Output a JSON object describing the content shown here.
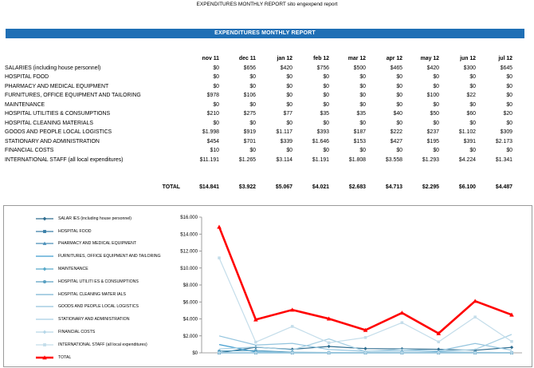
{
  "page_title": "EXPENDITURES MONTHLY REPORT sito engexpend report",
  "banner": "EXPENDITURES MONTHLY REPORT",
  "table": {
    "columns": [
      "nov 11",
      "dec 11",
      "jan 12",
      "feb 12",
      "mar 12",
      "apr 12",
      "may 12",
      "jun 12",
      "jul 12"
    ],
    "rows": [
      {
        "label": "SALARIES (including house personnel)",
        "values": [
          "$0",
          "$656",
          "$420",
          "$756",
          "$500",
          "$465",
          "$420",
          "$300",
          "$645"
        ]
      },
      {
        "label": "HOSPITAL  FOOD",
        "values": [
          "$0",
          "$0",
          "$0",
          "$0",
          "$0",
          "$0",
          "$0",
          "$0",
          "$0"
        ]
      },
      {
        "label": "PHARMACY AND MEDICAL EQUIPMENT",
        "values": [
          "$0",
          "$0",
          "$0",
          "$0",
          "$0",
          "$0",
          "$0",
          "$0",
          "$0"
        ]
      },
      {
        "label": "FURNITURES, OFFICE EQUIPMENT AND TAILORING",
        "values": [
          "$978",
          "$106",
          "$0",
          "$0",
          "$0",
          "$0",
          "$100",
          "$22",
          "$0"
        ]
      },
      {
        "label": "MAINTENANCE",
        "values": [
          "$0",
          "$0",
          "$0",
          "$0",
          "$0",
          "$0",
          "$0",
          "$0",
          "$0"
        ]
      },
      {
        "label": "HOSPITAL UTILITIES & CONSUMPTIONS",
        "values": [
          "$210",
          "$275",
          "$77",
          "$35",
          "$35",
          "$40",
          "$50",
          "$60",
          "$20"
        ]
      },
      {
        "label": "HOSPITAL CLEANING MATERIALS",
        "values": [
          "$0",
          "$0",
          "$0",
          "$0",
          "$0",
          "$0",
          "$0",
          "$0",
          "$0"
        ]
      },
      {
        "label": "GOODS AND PEOPLE LOCAL LOGISTICS",
        "values": [
          "$1.998",
          "$919",
          "$1.117",
          "$393",
          "$187",
          "$222",
          "$237",
          "$1.102",
          "$309"
        ]
      },
      {
        "label": "STATIONARY AND ADMINISTRATION",
        "values": [
          "$454",
          "$701",
          "$339",
          "$1.646",
          "$153",
          "$427",
          "$195",
          "$391",
          "$2.173"
        ]
      },
      {
        "label": "FINANCIAL COSTS",
        "values": [
          "$10",
          "$0",
          "$0",
          "$0",
          "$0",
          "$0",
          "$0",
          "$0",
          "$0"
        ]
      },
      {
        "label": "INTERNATIONAL STAFF (all local expenditures)",
        "values": [
          "$11.191",
          "$1.265",
          "$3.114",
          "$1.191",
          "$1.808",
          "$3.558",
          "$1.293",
          "$4.224",
          "$1.341"
        ]
      }
    ],
    "total": {
      "label": "TOTAL",
      "values": [
        "$14.841",
        "$3.922",
        "$5.067",
        "$4.021",
        "$2.683",
        "$4.713",
        "$2.295",
        "$6.100",
        "$4.487"
      ]
    }
  },
  "chart_data": {
    "type": "line",
    "x": [
      "nov 11",
      "dec 11",
      "jan 12",
      "feb 12",
      "mar 12",
      "apr 12",
      "may 12",
      "jun 12",
      "jul 12"
    ],
    "ylim": [
      0,
      16000
    ],
    "yticks": [
      "$0",
      "$2.000",
      "$4.000",
      "$6.000",
      "$8.000",
      "$10.000",
      "$12.000",
      "$14.000",
      "$16.000"
    ],
    "legend_position": "left",
    "grid": false,
    "series": [
      {
        "name": "SALAR IES (including house personnel)",
        "values": [
          0,
          656,
          420,
          756,
          500,
          465,
          420,
          300,
          645
        ],
        "color": "#2e6c8f",
        "marker": "diamond"
      },
      {
        "name": "HOSPITAL  FOOD",
        "values": [
          0,
          0,
          0,
          0,
          0,
          0,
          0,
          0,
          0
        ],
        "color": "#3a7fa8",
        "marker": "square"
      },
      {
        "name": "PHARMACY AND MEDICAL EQUIPMENT",
        "values": [
          0,
          0,
          0,
          0,
          0,
          0,
          0,
          0,
          0
        ],
        "color": "#4a8fb8",
        "marker": "triangle"
      },
      {
        "name": "FURNITURES, OFFICE EQUIPMENT AND TAILORING",
        "values": [
          978,
          106,
          0,
          0,
          0,
          0,
          100,
          22,
          0
        ],
        "color": "#3f9ccf",
        "marker": "none"
      },
      {
        "name": "MAINTENANCE",
        "values": [
          0,
          0,
          0,
          0,
          0,
          0,
          0,
          0,
          0
        ],
        "color": "#58a9c9",
        "marker": "diamond"
      },
      {
        "name": "HOSPITAL UTILITI ES & CONSUMPTIONS",
        "values": [
          210,
          275,
          77,
          35,
          35,
          40,
          50,
          60,
          20
        ],
        "color": "#5aa0c2",
        "marker": "circle"
      },
      {
        "name": "HOSPITAL CLEANING MATER IALS",
        "values": [
          0,
          0,
          0,
          0,
          0,
          0,
          0,
          0,
          0
        ],
        "color": "#7ab4d4",
        "marker": "none"
      },
      {
        "name": "GOODS AND PEOPLE LOCAL LOGISTICS",
        "values": [
          1998,
          919,
          1117,
          393,
          187,
          222,
          237,
          1102,
          309
        ],
        "color": "#93c4de",
        "marker": "none"
      },
      {
        "name": "STATIONARY AND ADMINISTRATION",
        "values": [
          454,
          701,
          339,
          1646,
          153,
          427,
          195,
          391,
          2173
        ],
        "color": "#a6cfe3",
        "marker": "none"
      },
      {
        "name": "FINANCIAL COSTS",
        "values": [
          10,
          0,
          0,
          0,
          0,
          0,
          0,
          0,
          0
        ],
        "color": "#b6d7e8",
        "marker": "diamond"
      },
      {
        "name": "INTERNATIONAL STAFF (all local expenditures)",
        "values": [
          11191,
          1265,
          3114,
          1191,
          1808,
          3558,
          1293,
          4224,
          1341
        ],
        "color": "#c4ddea",
        "marker": "square"
      },
      {
        "name": "TOTAL",
        "values": [
          14841,
          3922,
          5067,
          4021,
          2683,
          4713,
          2295,
          6100,
          4487
        ],
        "color": "#ff0000",
        "marker": "triangle",
        "thick": true
      }
    ]
  }
}
